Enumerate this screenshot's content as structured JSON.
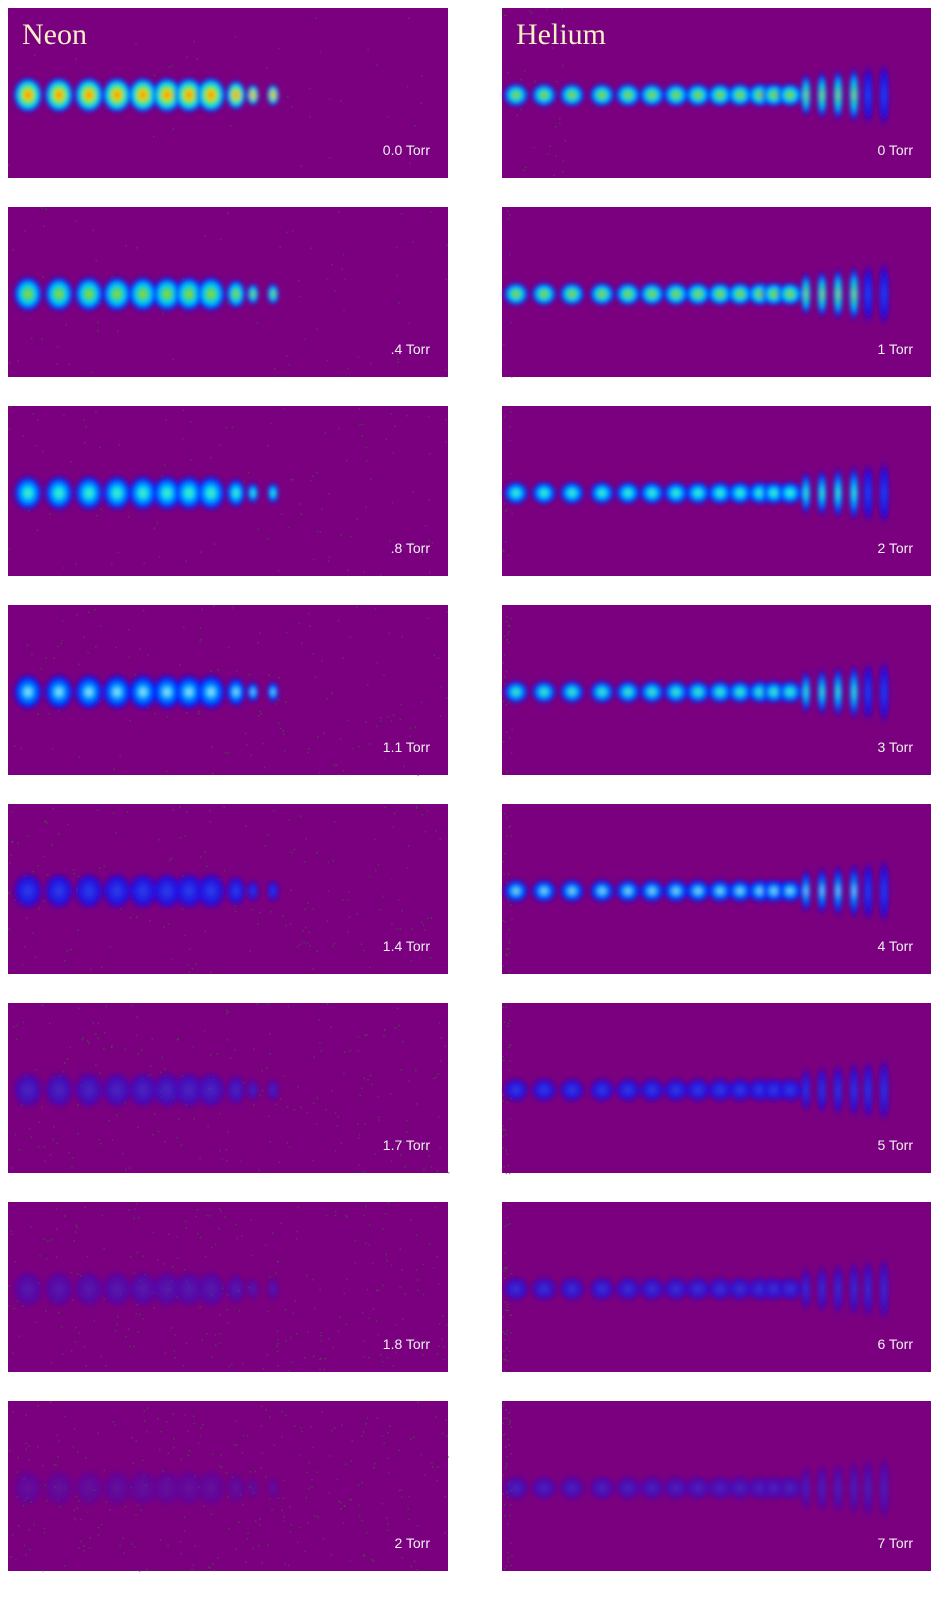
{
  "columns": [
    {
      "title": "Neon",
      "panels": [
        "0.0 Torr",
        ".4 Torr",
        ".8 Torr",
        "1.1 Torr",
        "1.4 Torr",
        "1.7 Torr",
        "1.8 Torr",
        "2 Torr"
      ]
    },
    {
      "title": "Helium",
      "panels": [
        "0 Torr",
        "1 Torr",
        "2 Torr",
        "3 Torr",
        "4 Torr",
        "5 Torr",
        "6 Torr",
        "7 Torr"
      ]
    }
  ]
}
